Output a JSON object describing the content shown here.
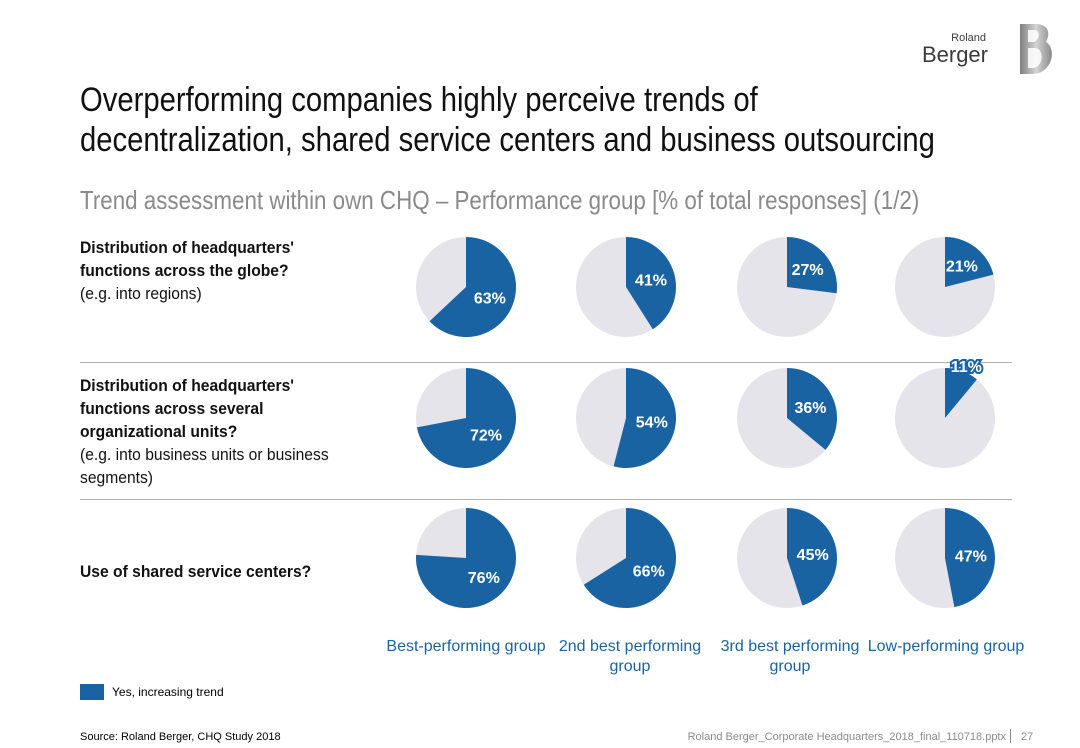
{
  "brand": {
    "small": "Roland",
    "big": "Berger"
  },
  "title_lines": [
    "Overperforming companies highly perceive trends of",
    "decentralization, shared service centers and business outsourcing"
  ],
  "subtitle": "Trend assessment within own CHQ – Performance group [% of total responses] (1/2)",
  "rows": [
    {
      "question": "Distribution of headquarters' functions across the globe?",
      "note": "(e.g. into regions)"
    },
    {
      "question": "Distribution of headquarters' functions across several organizational units?",
      "note": "(e.g. into business units or business segments)"
    },
    {
      "question": "Use of shared service centers?",
      "note": ""
    }
  ],
  "groups": [
    "Best-performing group",
    "2nd best performing group",
    "3rd best performing group",
    "Low-performing group"
  ],
  "legend": {
    "label": "Yes, increasing trend"
  },
  "colors": {
    "yes": "#1a63a3",
    "rest": "#e4e4ea"
  },
  "chart_data": {
    "type": "pie",
    "unit": "% of total responses",
    "series_name": "Yes, increasing trend",
    "categories": [
      "Best-performing group",
      "2nd best performing group",
      "3rd best performing group",
      "Low-performing group"
    ],
    "rows": [
      {
        "name": "Distribution of headquarters' functions across the globe?",
        "values": [
          63,
          41,
          27,
          21
        ],
        "labels": [
          "63%",
          "41%",
          "27%",
          "21%"
        ]
      },
      {
        "name": "Distribution of headquarters' functions across several organizational units?",
        "values": [
          72,
          54,
          36,
          11
        ],
        "labels": [
          "72%",
          "54%",
          "36%",
          "11%"
        ]
      },
      {
        "name": "Use of shared service centers?",
        "values": [
          76,
          66,
          45,
          47
        ],
        "labels": [
          "76%",
          "66%",
          "45%",
          "47%"
        ]
      }
    ]
  },
  "footer": {
    "source": "Source: Roland Berger, CHQ Study 2018",
    "file": "Roland Berger_Corporate Headquarters_2018_final_110718.pptx",
    "page": "27"
  }
}
